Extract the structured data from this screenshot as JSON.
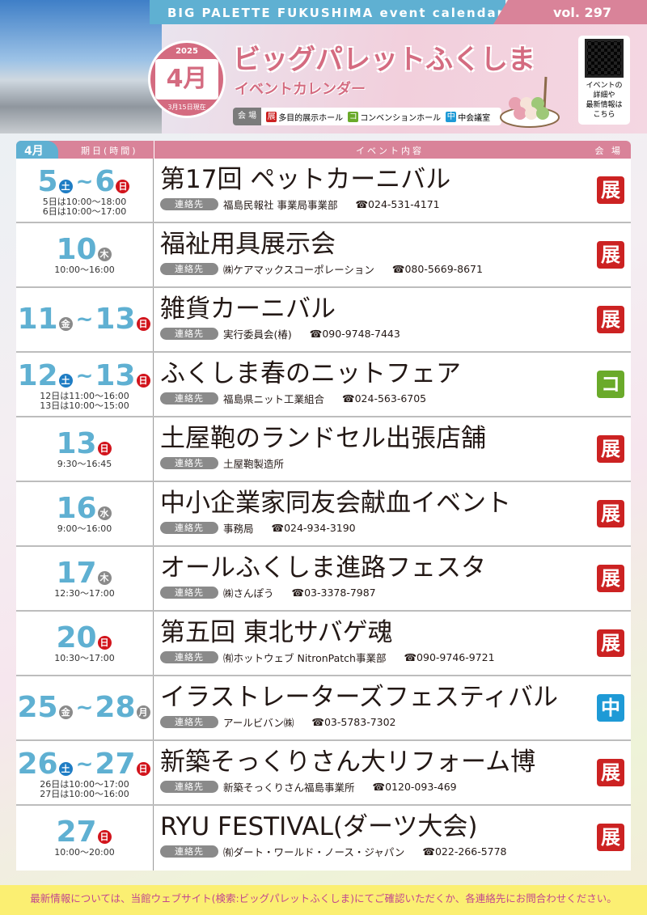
{
  "header": {
    "series": "BIG PALETTE FUKUSHIMA event calendar",
    "volume": "vol. 297",
    "year": "2025",
    "month": "4月",
    "as_of": "3月15日現在",
    "title": "ビッグパレットふくしま",
    "subtitle": "イベントカレンダー",
    "qr_text": [
      "イベントの",
      "詳細や",
      "最新情報は",
      "こちら"
    ]
  },
  "legend": {
    "label": "会 場",
    "items": [
      {
        "mark": "展",
        "name": "多目的展示ホール",
        "color": "#cc2222"
      },
      {
        "mark": "コ",
        "name": "コンベンションホール",
        "color": "#6aaa2a"
      },
      {
        "mark": "中",
        "name": "中会議室",
        "color": "#1e9ad6"
      }
    ]
  },
  "table_header": {
    "month": "4月",
    "date": "期日(時間)",
    "event": "イベント内容",
    "venue": "会 場"
  },
  "contact_label": "連絡先",
  "weekday_colors": {
    "土": "#1f7dc4",
    "日": "#d2141c",
    "other": "#8a8a8a"
  },
  "events": [
    {
      "d1": "5",
      "w1": "土",
      "d2": "6",
      "w2": "日",
      "times": [
        "5日は10:00～18:00",
        "6日は10:00～17:00"
      ],
      "name": "第17回 ペットカーニバル",
      "contact": "福島民報社 事業局事業部",
      "tel": "☎024-531-4171",
      "venue": "展"
    },
    {
      "d1": "10",
      "w1": "木",
      "times": [
        "10:00～16:00"
      ],
      "name": "福祉用具展示会",
      "contact": "㈱ケアマックスコーポレーション",
      "tel": "☎080-5669-8671",
      "venue": "展"
    },
    {
      "d1": "11",
      "w1": "金",
      "d2": "13",
      "w2": "日",
      "times": [],
      "name": "雑貨カーニバル",
      "contact": "実行委員会(椿)",
      "tel": "☎090-9748-7443",
      "venue": "展"
    },
    {
      "d1": "12",
      "w1": "土",
      "d2": "13",
      "w2": "日",
      "times": [
        "12日は11:00～16:00",
        "13日は10:00～15:00"
      ],
      "name": "ふくしま春のニットフェア",
      "contact": "福島県ニット工業組合",
      "tel": "☎024-563-6705",
      "venue": "コ"
    },
    {
      "d1": "13",
      "w1": "日",
      "times": [
        "9:30～16:45"
      ],
      "name": "土屋鞄のランドセル出張店舗",
      "contact": "土屋鞄製造所",
      "tel": "",
      "venue": "展"
    },
    {
      "d1": "16",
      "w1": "水",
      "times": [
        "9:00～16:00"
      ],
      "name": "中小企業家同友会献血イベント",
      "contact": "事務局",
      "tel": "☎024-934-3190",
      "venue": "展"
    },
    {
      "d1": "17",
      "w1": "木",
      "times": [
        "12:30～17:00"
      ],
      "name": "オールふくしま進路フェスタ",
      "contact": "㈱さんぽう",
      "tel": "☎03-3378-7987",
      "venue": "展"
    },
    {
      "d1": "20",
      "w1": "日",
      "times": [
        "10:30～17:00"
      ],
      "name": "第五回 東北サバゲ魂",
      "contact": "㈲ホットウェブ NitronPatch事業部",
      "tel": "☎090-9746-9721",
      "venue": "展"
    },
    {
      "d1": "25",
      "w1": "金",
      "d2": "28",
      "w2": "月",
      "times": [],
      "name": "イラストレーターズフェスティバル",
      "contact": "アールビバン㈱",
      "tel": "☎03-5783-7302",
      "venue": "中"
    },
    {
      "d1": "26",
      "w1": "土",
      "d2": "27",
      "w2": "日",
      "times": [
        "26日は10:00～17:00",
        "27日は10:00～16:00"
      ],
      "name": "新築そっくりさん大リフォーム博",
      "contact": "新築そっくりさん福島事業所",
      "tel": "☎0120-093-469",
      "venue": "展"
    },
    {
      "d1": "27",
      "w1": "日",
      "times": [
        "10:00～20:00"
      ],
      "name": "RYU FESTIVAL(ダーツ大会)",
      "contact": "㈲ダート・ワールド・ノース・ジャパン",
      "tel": "☎022-266-5778",
      "venue": "展"
    }
  ],
  "footer": "最新情報については、当館ウェブサイト(検索:ビッグパレットふくしま)にてご確認いただくか、各連絡先にお問合わせください。"
}
